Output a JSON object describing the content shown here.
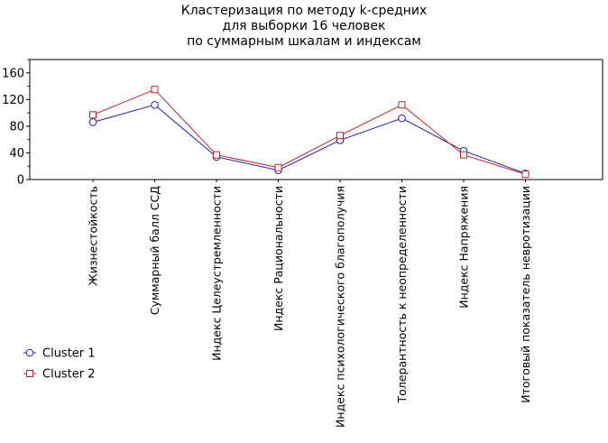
{
  "chart_data": {
    "type": "line",
    "title_lines": [
      "Кластеризация по методу k-средних",
      "для выборки 16 человек",
      "по суммарным шкалам и индексам"
    ],
    "categories": [
      "Жизнестойкость",
      "Суммарный балл ССД",
      "Индекс Целеустремленности",
      "Индекс Рациональности",
      "Индекс психологического благополучия",
      "Толерантность к неопределенности",
      "Индекс Напряжения",
      "Итоговый показатель невротизации"
    ],
    "series": [
      {
        "name": "Cluster 1",
        "values": [
          86,
          112,
          34,
          14,
          59,
          92,
          43,
          9
        ],
        "color": "#2020a0",
        "marker": "circle"
      },
      {
        "name": "Cluster 2",
        "values": [
          97,
          135,
          37,
          18,
          66,
          112,
          37,
          8
        ],
        "color": "#c02030",
        "marker": "square"
      }
    ],
    "ylim": [
      0,
      180
    ],
    "yticks": [
      0,
      40,
      80,
      120,
      160
    ],
    "grid": false,
    "legend_position": "bottom-left"
  }
}
